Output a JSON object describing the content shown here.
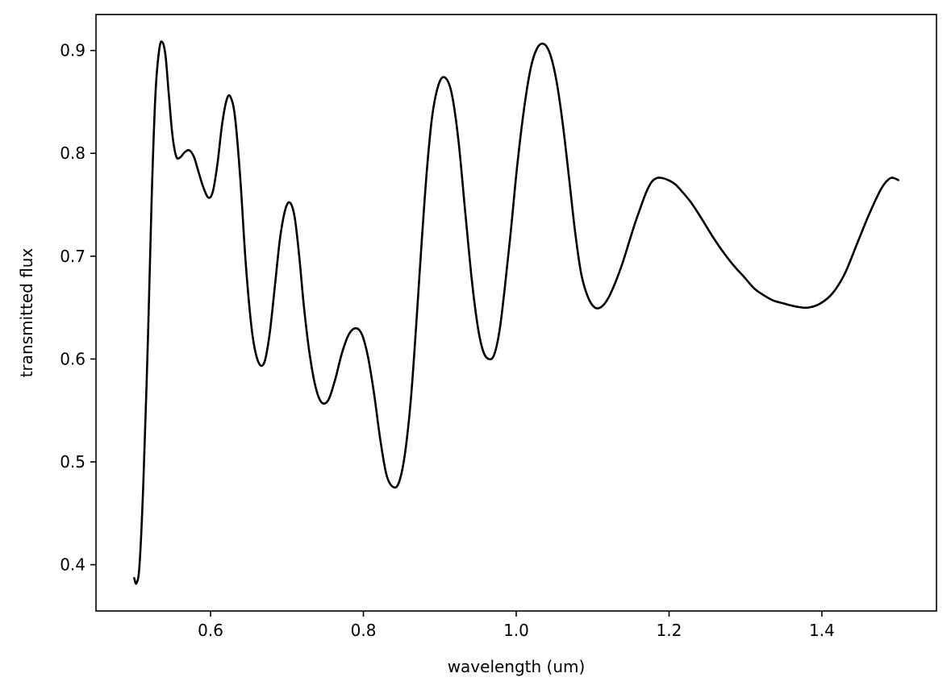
{
  "chart_data": {
    "type": "line",
    "title": "",
    "xlabel": "wavelength (um)",
    "ylabel": "transmitted flux",
    "xlim": [
      0.45,
      1.55
    ],
    "ylim": [
      0.355,
      0.935
    ],
    "xticks": [
      0.6,
      0.8,
      1.0,
      1.2,
      1.4
    ],
    "xtick_labels": [
      "0.6",
      "0.8",
      "1.0",
      "1.2",
      "1.4"
    ],
    "yticks": [
      0.4,
      0.5,
      0.6,
      0.7,
      0.8,
      0.9
    ],
    "ytick_labels": [
      "0.4",
      "0.5",
      "0.6",
      "0.7",
      "0.8",
      "0.9"
    ],
    "grid": false,
    "line_color": "#000000",
    "series": [
      {
        "x": [
          0.5,
          0.503,
          0.507,
          0.512,
          0.518,
          0.523,
          0.528,
          0.533,
          0.537,
          0.541,
          0.545,
          0.55,
          0.555,
          0.56,
          0.566,
          0.572,
          0.578,
          0.583,
          0.59,
          0.597,
          0.603,
          0.609,
          0.615,
          0.621,
          0.626,
          0.632,
          0.639,
          0.646,
          0.654,
          0.662,
          0.67,
          0.677,
          0.684,
          0.691,
          0.698,
          0.704,
          0.71,
          0.716,
          0.722,
          0.729,
          0.737,
          0.745,
          0.754,
          0.763,
          0.772,
          0.781,
          0.79,
          0.798,
          0.806,
          0.814,
          0.822,
          0.83,
          0.838,
          0.846,
          0.854,
          0.862,
          0.869,
          0.876,
          0.883,
          0.89,
          0.898,
          0.906,
          0.915,
          0.924,
          0.933,
          0.942,
          0.95,
          0.957,
          0.964,
          0.971,
          0.978,
          0.985,
          0.993,
          1.001,
          1.01,
          1.019,
          1.028,
          1.037,
          1.045,
          1.053,
          1.061,
          1.069,
          1.077,
          1.085,
          1.094,
          1.103,
          1.112,
          1.121,
          1.13,
          1.139,
          1.147,
          1.155,
          1.163,
          1.17,
          1.177,
          1.184,
          1.191,
          1.199,
          1.208,
          1.218,
          1.228,
          1.238,
          1.248,
          1.258,
          1.268,
          1.278,
          1.288,
          1.298,
          1.306,
          1.314,
          1.324,
          1.336,
          1.35,
          1.366,
          1.382,
          1.398,
          1.414,
          1.43,
          1.446,
          1.462,
          1.478,
          1.49,
          1.5
        ],
        "y": [
          0.387,
          0.382,
          0.4,
          0.48,
          0.62,
          0.76,
          0.86,
          0.902,
          0.908,
          0.895,
          0.86,
          0.818,
          0.797,
          0.796,
          0.801,
          0.803,
          0.797,
          0.785,
          0.768,
          0.757,
          0.763,
          0.79,
          0.828,
          0.852,
          0.855,
          0.835,
          0.774,
          0.693,
          0.628,
          0.598,
          0.596,
          0.623,
          0.67,
          0.718,
          0.746,
          0.752,
          0.738,
          0.7,
          0.652,
          0.608,
          0.574,
          0.558,
          0.56,
          0.58,
          0.606,
          0.624,
          0.63,
          0.624,
          0.602,
          0.566,
          0.522,
          0.488,
          0.476,
          0.479,
          0.506,
          0.56,
          0.632,
          0.711,
          0.783,
          0.836,
          0.866,
          0.874,
          0.86,
          0.815,
          0.745,
          0.676,
          0.63,
          0.607,
          0.6,
          0.604,
          0.627,
          0.669,
          0.725,
          0.786,
          0.842,
          0.883,
          0.903,
          0.906,
          0.895,
          0.869,
          0.828,
          0.777,
          0.724,
          0.683,
          0.66,
          0.65,
          0.651,
          0.66,
          0.675,
          0.693,
          0.712,
          0.731,
          0.748,
          0.762,
          0.772,
          0.776,
          0.776,
          0.774,
          0.77,
          0.762,
          0.753,
          0.742,
          0.73,
          0.718,
          0.707,
          0.697,
          0.688,
          0.68,
          0.673,
          0.667,
          0.662,
          0.657,
          0.654,
          0.651,
          0.65,
          0.654,
          0.664,
          0.683,
          0.712,
          0.741,
          0.766,
          0.776,
          0.774
        ]
      }
    ]
  }
}
